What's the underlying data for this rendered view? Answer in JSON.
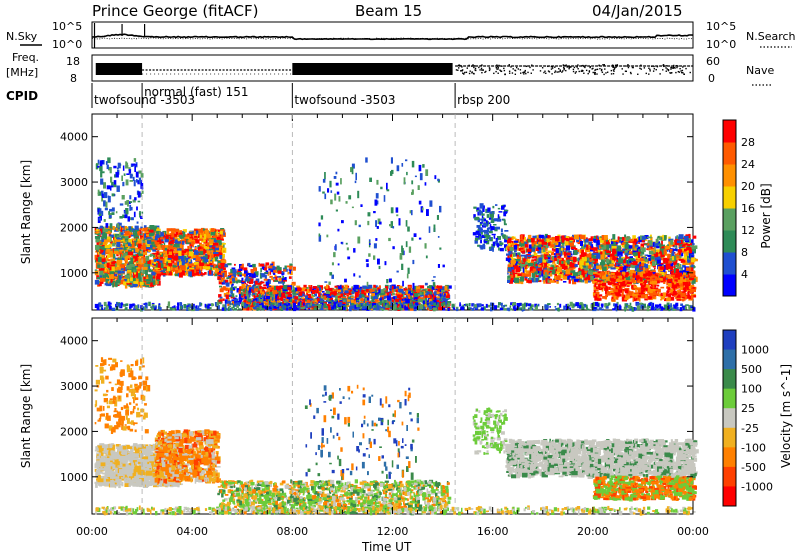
{
  "header": {
    "title": "Prince George (fitACF)",
    "beam": "Beam 15",
    "date": "04/Jan/2015"
  },
  "noise_panel": {
    "left_label": "N.Sky",
    "left_ticks": [
      "10^5",
      "10^0"
    ],
    "right_ticks": [
      "10^5",
      "10^0"
    ],
    "right_label": "N.Search",
    "right_style": "dotted"
  },
  "freq_panel": {
    "left_label_1": "Freq.",
    "left_label_2": "[MHz]",
    "left_ticks": [
      "18",
      "8"
    ],
    "right_ticks": [
      "60",
      "0"
    ],
    "right_label": "Nave",
    "right_style": "dotted"
  },
  "cpid_panel": {
    "label": "CPID",
    "segments": [
      {
        "start_h": 0.0,
        "name": "twofsound -3503"
      },
      {
        "start_h": 2.0,
        "name": "normal (fast) 151"
      },
      {
        "start_h": 8.0,
        "name": "twofsound -3503"
      },
      {
        "start_h": 14.5,
        "name": "rbsp 200"
      }
    ]
  },
  "colors": {
    "power_scale": [
      "#0000ff",
      "#1f4fd0",
      "#2e8b57",
      "#5aa060",
      "#f7d000",
      "#ff9000",
      "#ff5a00",
      "#ff0000"
    ],
    "velocity_scale": [
      "#1f3fbf",
      "#2e6fa8",
      "#3a8a4a",
      "#6ccc3a",
      "#c8c8c0",
      "#f0b020",
      "#ff8000",
      "#ff4000",
      "#ff0000"
    ]
  },
  "chart_data": [
    {
      "type": "heatmap",
      "title": "",
      "xlabel": "",
      "ylabel": "Slant Range [km]",
      "xlim": [
        0,
        24
      ],
      "ylim": [
        180,
        4500
      ],
      "x_ticks": [
        "00:00",
        "04:00",
        "08:00",
        "12:00",
        "16:00",
        "20:00",
        "00:00"
      ],
      "y_ticks": [
        "1000",
        "2000",
        "3000",
        "4000"
      ],
      "colorbar": {
        "label": "Power [dB]",
        "range": [
          0,
          30
        ],
        "ticks": [
          "4",
          "8",
          "12",
          "16",
          "20",
          "24",
          "28"
        ]
      },
      "features": [
        {
          "x_start": 0.0,
          "x_end": 2.5,
          "range_low": 600,
          "range_high": 2200,
          "dominant": "green/orange"
        },
        {
          "x_start": 2.5,
          "x_end": 5.0,
          "range_low": 1000,
          "range_high": 1900,
          "dominant": "orange/red"
        },
        {
          "x_start": 5.0,
          "x_end": 14.0,
          "range_low": 200,
          "range_high": 900,
          "dominant": "orange/red"
        },
        {
          "x_start": 15.0,
          "x_end": 24.0,
          "range_low": 500,
          "range_high": 2500,
          "dominant": "orange/red"
        }
      ]
    },
    {
      "type": "heatmap",
      "title": "",
      "xlabel": "Time UT",
      "ylabel": "Slant Range [km]",
      "xlim": [
        0,
        24
      ],
      "ylim": [
        180,
        4500
      ],
      "x_ticks": [
        "00:00",
        "04:00",
        "08:00",
        "12:00",
        "16:00",
        "20:00",
        "00:00"
      ],
      "y_ticks": [
        "1000",
        "2000",
        "3000",
        "4000"
      ],
      "colorbar": {
        "label": "Velocity [m s^-1]",
        "ticks": [
          "1000",
          "500",
          "100",
          "25",
          "-25",
          "-100",
          "-500",
          "-1000"
        ]
      },
      "features": [
        {
          "x_start": 0.0,
          "x_end": 5.0,
          "range_low": 700,
          "range_high": 1800,
          "dominant": "grey/orange"
        },
        {
          "x_start": 5.0,
          "x_end": 14.0,
          "range_low": 200,
          "range_high": 800,
          "dominant": "green/orange"
        },
        {
          "x_start": 15.0,
          "x_end": 24.0,
          "range_low": 500,
          "range_high": 1800,
          "dominant": "grey/green"
        }
      ]
    }
  ]
}
